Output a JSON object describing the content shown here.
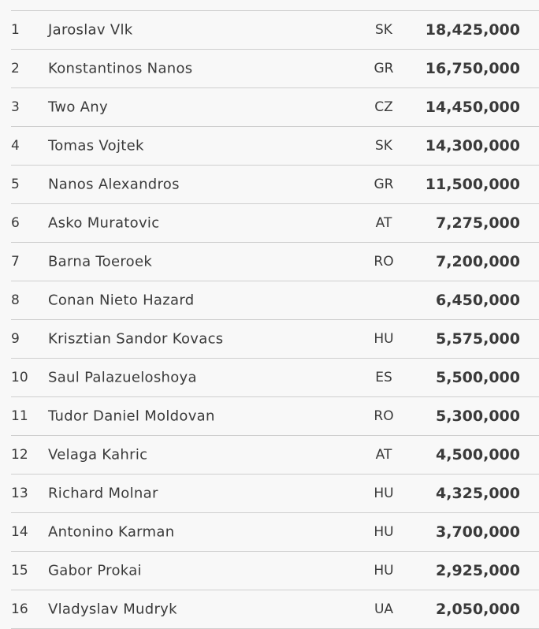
{
  "leaderboard": {
    "rows": [
      {
        "rank": "1",
        "name": "Jaroslav Vlk",
        "country": "SK",
        "amount": "18,425,000"
      },
      {
        "rank": "2",
        "name": "Konstantinos Nanos",
        "country": "GR",
        "amount": "16,750,000"
      },
      {
        "rank": "3",
        "name": "Two Any",
        "country": "CZ",
        "amount": "14,450,000"
      },
      {
        "rank": "4",
        "name": "Tomas Vojtek",
        "country": "SK",
        "amount": "14,300,000"
      },
      {
        "rank": "5",
        "name": "Nanos Alexandros",
        "country": "GR",
        "amount": "11,500,000"
      },
      {
        "rank": "6",
        "name": "Asko Muratovic",
        "country": "AT",
        "amount": "7,275,000"
      },
      {
        "rank": "7",
        "name": "Barna Toeroek",
        "country": "RO",
        "amount": "7,200,000"
      },
      {
        "rank": "8",
        "name": "Conan Nieto Hazard",
        "country": "",
        "amount": "6,450,000"
      },
      {
        "rank": "9",
        "name": "Krisztian Sandor Kovacs",
        "country": "HU",
        "amount": "5,575,000"
      },
      {
        "rank": "10",
        "name": "Saul Palazueloshoya",
        "country": "ES",
        "amount": "5,500,000"
      },
      {
        "rank": "11",
        "name": "Tudor Daniel Moldovan",
        "country": "RO",
        "amount": "5,300,000"
      },
      {
        "rank": "12",
        "name": "Velaga Kahric",
        "country": "AT",
        "amount": "4,500,000"
      },
      {
        "rank": "13",
        "name": "Richard Molnar",
        "country": "HU",
        "amount": "4,325,000"
      },
      {
        "rank": "14",
        "name": "Antonino Karman",
        "country": "HU",
        "amount": "3,700,000"
      },
      {
        "rank": "15",
        "name": "Gabor Prokai",
        "country": "HU",
        "amount": "2,925,000"
      },
      {
        "rank": "16",
        "name": "Vladyslav Mudryk",
        "country": "UA",
        "amount": "2,050,000"
      }
    ]
  }
}
